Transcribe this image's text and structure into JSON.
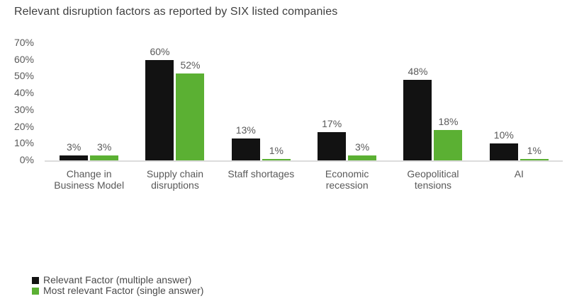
{
  "title": "Relevant disruption factors as reported by SIX listed companies",
  "colors": {
    "bar_black": "#121212",
    "bar_green": "#5bb033",
    "axis_line": "#dcdcdc",
    "label_text": "#595959",
    "title_text": "#3f3f3f"
  },
  "chart_data": {
    "type": "bar",
    "title": "Relevant disruption factors as reported by SIX listed companies",
    "categories": [
      "Change in Business Model",
      "Supply chain disruptions",
      "Staff shortages",
      "Economic recession",
      "Geopolitical tensions",
      "AI"
    ],
    "category_display": [
      "Change in\nBusiness Model",
      "Supply chain\ndisruptions",
      "Staff shortages",
      "Economic\nrecession",
      "Geopolitical\ntensions",
      "AI"
    ],
    "series": [
      {
        "name": "Relevant Factor (multiple answer)",
        "color": "#121212",
        "values": [
          3,
          60,
          13,
          17,
          48,
          10
        ],
        "value_labels": [
          "3%",
          "60%",
          "13%",
          "17%",
          "48%",
          "10%"
        ]
      },
      {
        "name": "Most relevant Factor (single answer)",
        "color": "#5bb033",
        "values": [
          3,
          52,
          1,
          3,
          18,
          1
        ],
        "value_labels": [
          "3%",
          "52%",
          "1%",
          "3%",
          "18%",
          "1%"
        ]
      }
    ],
    "ylim": [
      0,
      70
    ],
    "ytick_labels": [
      "0%",
      "10%",
      "20%",
      "30%",
      "40%",
      "50%",
      "60%",
      "70%"
    ],
    "grid": false,
    "legend_position": "bottom-left",
    "xlabel": "",
    "ylabel": ""
  }
}
